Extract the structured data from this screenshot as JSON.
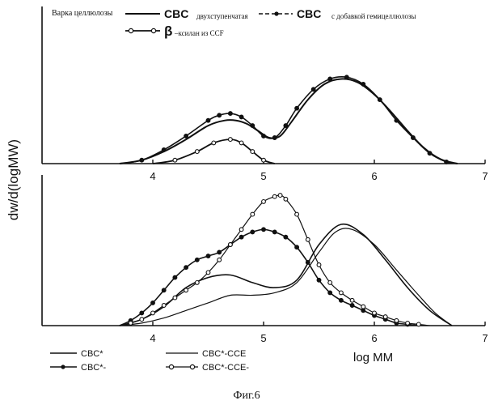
{
  "figure": {
    "caption": "Фиг.6"
  },
  "chart_data": [
    {
      "type": "line",
      "panel": "top",
      "xlim": [
        3,
        7
      ],
      "xticks": [
        4,
        5,
        6,
        7
      ],
      "ylabel": "dw/d(logMW)",
      "legend": {
        "header": "Варка целлюлозы",
        "entries": [
          {
            "key": "s1",
            "label": "CBC",
            "sublabel": "двухступенчатая"
          },
          {
            "key": "s2",
            "label": "CBC",
            "sublabel": "с добавкой гемицеллюлозы"
          },
          {
            "key": "s3",
            "label": "β",
            "sublabel": "–ксилан из CCF"
          }
        ]
      },
      "ylim": [
        0,
        1.05
      ],
      "series": [
        {
          "key": "s1",
          "marker": "none",
          "x": [
            3.7,
            3.9,
            4.1,
            4.3,
            4.5,
            4.65,
            4.75,
            4.85,
            4.95,
            5.05,
            5.15,
            5.25,
            5.4,
            5.55,
            5.7,
            5.85,
            6.0,
            6.15,
            6.3,
            6.45,
            6.6,
            6.75
          ],
          "y": [
            0.0,
            0.04,
            0.14,
            0.28,
            0.44,
            0.5,
            0.5,
            0.46,
            0.38,
            0.3,
            0.32,
            0.48,
            0.74,
            0.92,
            0.98,
            0.94,
            0.8,
            0.6,
            0.38,
            0.18,
            0.05,
            0.0
          ]
        },
        {
          "key": "s2",
          "marker": "filled",
          "x": [
            3.7,
            3.9,
            4.1,
            4.3,
            4.5,
            4.6,
            4.7,
            4.8,
            4.9,
            5.0,
            5.1,
            5.2,
            5.3,
            5.45,
            5.6,
            5.75,
            5.9,
            6.05,
            6.2,
            6.35,
            6.5,
            6.65,
            6.75
          ],
          "y": [
            0.0,
            0.04,
            0.16,
            0.32,
            0.5,
            0.56,
            0.58,
            0.54,
            0.44,
            0.32,
            0.3,
            0.44,
            0.64,
            0.86,
            0.98,
            1.0,
            0.92,
            0.74,
            0.5,
            0.3,
            0.12,
            0.02,
            0.0
          ]
        },
        {
          "key": "s3",
          "marker": "open",
          "x": [
            4.0,
            4.2,
            4.4,
            4.55,
            4.7,
            4.8,
            4.9,
            5.0,
            5.1
          ],
          "y": [
            0.0,
            0.04,
            0.14,
            0.24,
            0.28,
            0.24,
            0.14,
            0.04,
            0.0
          ]
        }
      ]
    },
    {
      "type": "line",
      "panel": "bottom",
      "xlabel": "log MM",
      "xlim": [
        3,
        7
      ],
      "xticks": [
        4,
        5,
        6,
        7
      ],
      "ylim": [
        0,
        1.05
      ],
      "legend": {
        "entries": [
          {
            "key": "b1",
            "label": "CBC*"
          },
          {
            "key": "b2",
            "label": "CBC*-CCE"
          },
          {
            "key": "b3",
            "label": "CBC*-"
          },
          {
            "key": "b4",
            "label": "CBC*-CCE-"
          }
        ]
      },
      "series": [
        {
          "key": "b1",
          "marker": "none",
          "x": [
            3.7,
            3.9,
            4.1,
            4.3,
            4.5,
            4.7,
            4.9,
            5.1,
            5.3,
            5.5,
            5.7,
            5.9,
            6.1,
            6.3,
            6.5,
            6.7
          ],
          "y": [
            0.0,
            0.05,
            0.15,
            0.3,
            0.38,
            0.4,
            0.34,
            0.3,
            0.36,
            0.64,
            0.8,
            0.72,
            0.52,
            0.3,
            0.12,
            0.0
          ]
        },
        {
          "key": "b2",
          "marker": "none",
          "x": [
            3.7,
            3.9,
            4.1,
            4.3,
            4.5,
            4.7,
            4.9,
            5.1,
            5.3,
            5.5,
            5.65,
            5.8,
            6.0,
            6.2,
            6.4,
            6.55,
            6.7
          ],
          "y": [
            0.0,
            0.02,
            0.06,
            0.12,
            0.18,
            0.24,
            0.24,
            0.26,
            0.34,
            0.58,
            0.74,
            0.76,
            0.64,
            0.44,
            0.24,
            0.1,
            0.0
          ]
        },
        {
          "key": "b3",
          "marker": "filled",
          "x": [
            3.7,
            3.8,
            3.9,
            4.0,
            4.1,
            4.2,
            4.3,
            4.4,
            4.5,
            4.6,
            4.7,
            4.8,
            4.9,
            5.0,
            5.1,
            5.2,
            5.3,
            5.4,
            5.5,
            5.6,
            5.7,
            5.8,
            5.9,
            6.0,
            6.1,
            6.2,
            6.3,
            6.4
          ],
          "y": [
            0.0,
            0.04,
            0.1,
            0.18,
            0.28,
            0.38,
            0.46,
            0.52,
            0.55,
            0.58,
            0.64,
            0.7,
            0.74,
            0.76,
            0.74,
            0.7,
            0.62,
            0.5,
            0.36,
            0.26,
            0.2,
            0.16,
            0.12,
            0.08,
            0.05,
            0.02,
            0.01,
            0.0
          ]
        },
        {
          "key": "b4",
          "marker": "open",
          "x": [
            3.7,
            3.8,
            3.9,
            4.0,
            4.1,
            4.2,
            4.3,
            4.4,
            4.5,
            4.6,
            4.7,
            4.8,
            4.9,
            5.0,
            5.1,
            5.15,
            5.2,
            5.3,
            5.4,
            5.5,
            5.6,
            5.7,
            5.8,
            5.9,
            6.0,
            6.1,
            6.2,
            6.3,
            6.4,
            6.5
          ],
          "y": [
            0.0,
            0.02,
            0.05,
            0.1,
            0.16,
            0.22,
            0.28,
            0.34,
            0.42,
            0.52,
            0.64,
            0.76,
            0.88,
            0.98,
            1.02,
            1.03,
            1.0,
            0.88,
            0.68,
            0.48,
            0.34,
            0.26,
            0.2,
            0.15,
            0.1,
            0.07,
            0.04,
            0.02,
            0.01,
            0.0
          ]
        }
      ]
    }
  ]
}
